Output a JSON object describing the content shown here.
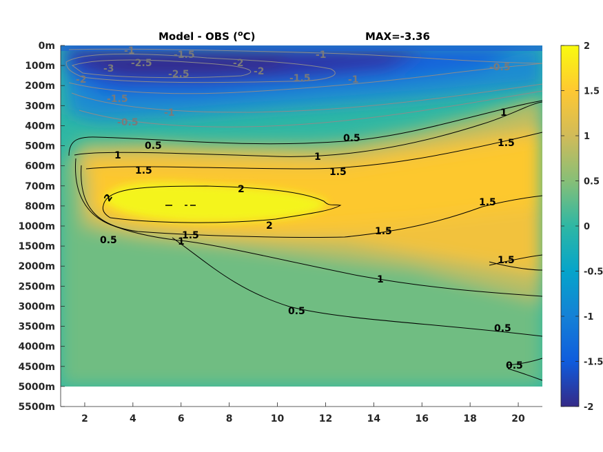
{
  "chart_data": {
    "type": "heatmap",
    "title_left": "Model - OBS (°C)",
    "title_left_prefix": "Model - OBS (",
    "title_left_sup": "o",
    "title_left_suffix": "C)",
    "title_right": "MAX=-3.36",
    "xlim": [
      1,
      21
    ],
    "x_ticks": [
      "2",
      "4",
      "6",
      "8",
      "10",
      "12",
      "14",
      "16",
      "18",
      "20"
    ],
    "y_ticks": [
      "0m",
      "100m",
      "200m",
      "300m",
      "400m",
      "500m",
      "600m",
      "700m",
      "800m",
      "1000m",
      "1500m",
      "2000m",
      "2500m",
      "3000m",
      "3500m",
      "4000m",
      "4500m",
      "5000m",
      "5500m"
    ],
    "data_bottom_label": "5000m",
    "colorbar": {
      "range": [
        -2,
        2
      ],
      "ticks": [
        "2",
        "1.5",
        "1",
        "0.5",
        "0",
        "-0.5",
        "-1",
        "-1.5",
        "-2"
      ],
      "colormap": "parula",
      "colors": [
        "#352a87",
        "#0f5cdd",
        "#1481d6",
        "#06a4ca",
        "#2eb7a4",
        "#87bf77",
        "#d1bb59",
        "#fec832",
        "#f9fb0e"
      ]
    },
    "contour_levels": [
      -3,
      -2.5,
      -2,
      -1.5,
      -1,
      -0.5,
      0.5,
      1,
      1.5,
      2
    ],
    "contour_colors": {
      "negative": "#8c8c8c",
      "positive": "#000000"
    },
    "contour_labels": {
      "positive": [
        "0.5",
        "1",
        "1.5",
        "2",
        "0.5",
        "1",
        "1.5",
        "2",
        "0.5",
        "1",
        "1.5",
        "1.5",
        "1.5",
        "1",
        "1.5",
        "1",
        "0.5",
        "0.5",
        "0.5"
      ],
      "negative": [
        "-1",
        "-1.5",
        "-1",
        "-2",
        "-3",
        "-2.5",
        "-2.5",
        "-2",
        "-2",
        "-1.5",
        "-1",
        "-0.5",
        "-1.5",
        "-1",
        "-0.5",
        "-2"
      ]
    },
    "max_text": "MAX=-3.36",
    "grid": false
  }
}
